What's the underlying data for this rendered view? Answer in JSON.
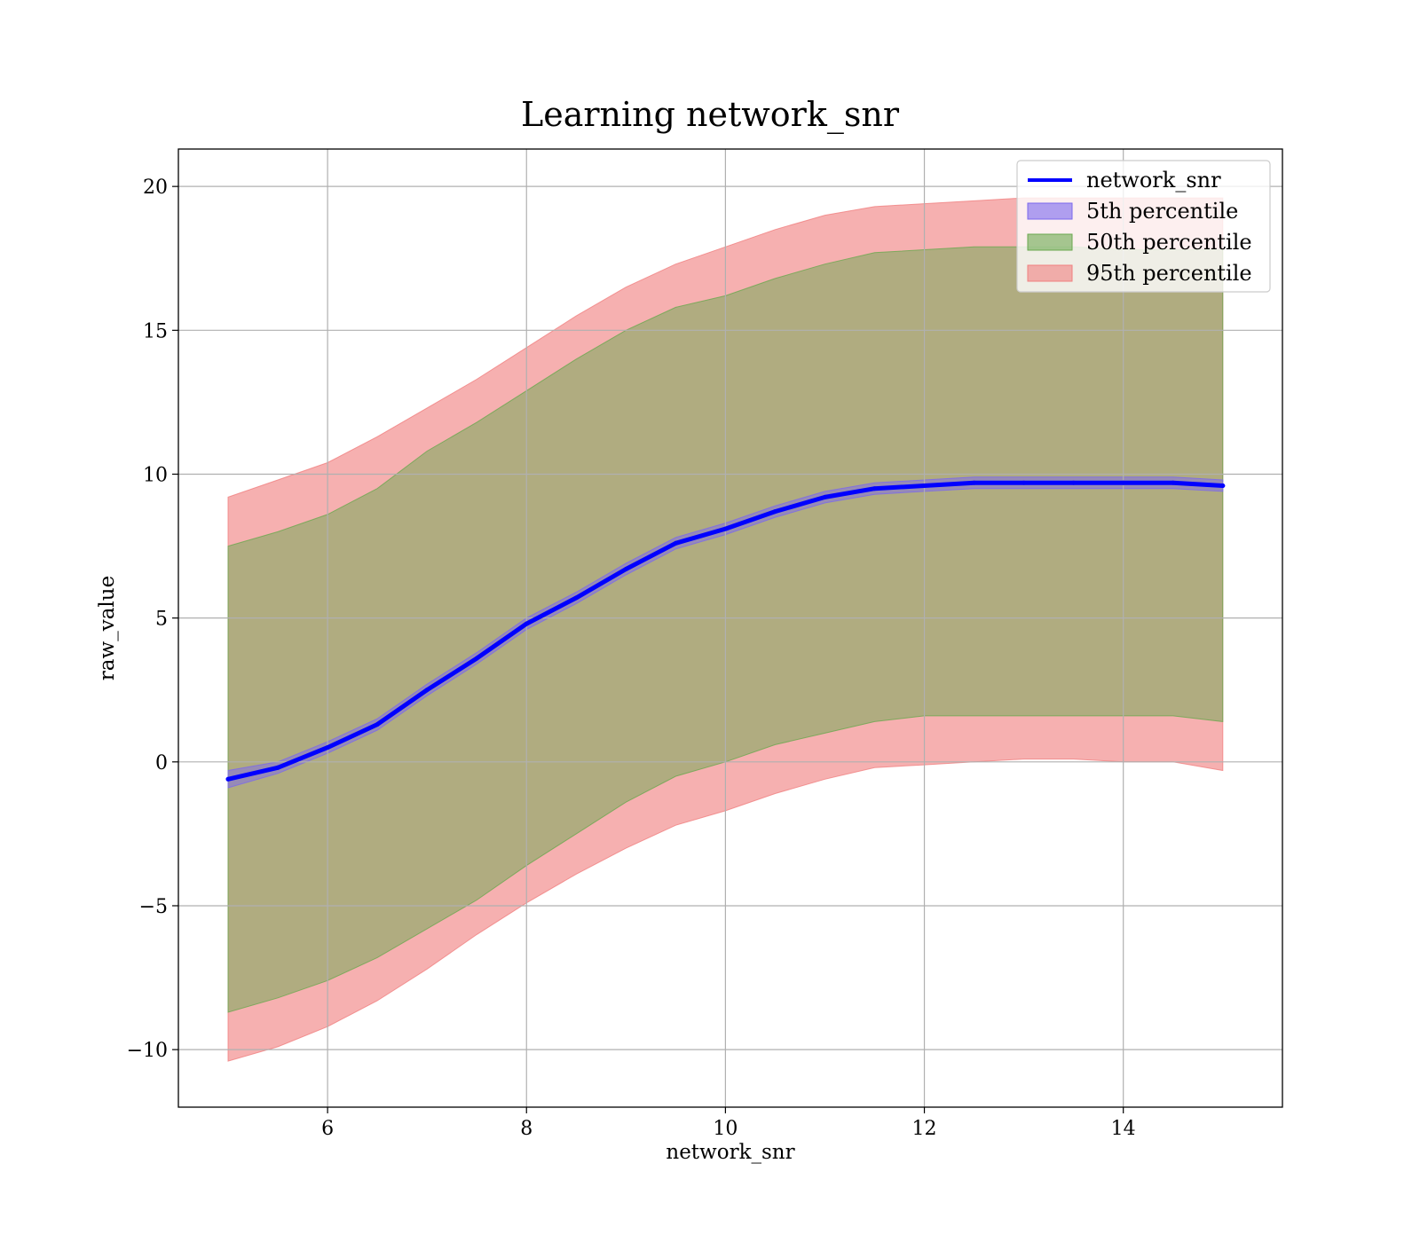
{
  "chart_data": {
    "type": "line",
    "title": "Learning network_snr",
    "xlabel": "network_snr",
    "ylabel": "raw_value",
    "xlim": [
      4.5,
      15.6
    ],
    "ylim": [
      -12.0,
      21.3
    ],
    "xticks": [
      6,
      8,
      10,
      12,
      14
    ],
    "yticks": [
      -10,
      -5,
      0,
      5,
      10,
      15,
      20
    ],
    "ytick_labels": [
      "−10",
      "−5",
      "0",
      "5",
      "10",
      "15",
      "20"
    ],
    "grid": true,
    "legend": {
      "placement": "top-right",
      "entries": [
        {
          "label": "network_snr",
          "kind": "line",
          "color": "#0000ff"
        },
        {
          "label": "5th percentile",
          "kind": "patch",
          "color": "#7b68ee"
        },
        {
          "label": "50th percentile",
          "kind": "patch",
          "color": "#6aa84f"
        },
        {
          "label": "95th percentile",
          "kind": "patch",
          "color": "#f08080"
        }
      ]
    },
    "series": [
      {
        "name": "network_snr",
        "kind": "line",
        "color": "#0000ff",
        "x": [
          5.0,
          5.5,
          6.0,
          6.5,
          7.0,
          7.5,
          8.0,
          8.5,
          9.0,
          9.5,
          10.0,
          10.5,
          11.0,
          11.5,
          12.0,
          12.5,
          13.0,
          13.5,
          14.0,
          14.5,
          15.0
        ],
        "y": [
          -0.6,
          -0.2,
          0.5,
          1.3,
          2.5,
          3.6,
          4.8,
          5.7,
          6.7,
          7.6,
          8.1,
          8.7,
          9.2,
          9.5,
          9.6,
          9.7,
          9.7,
          9.7,
          9.7,
          9.7,
          9.6
        ]
      },
      {
        "name": "5th percentile",
        "kind": "band",
        "color": "#7b68ee",
        "x": [
          5.0,
          5.5,
          6.0,
          6.5,
          7.0,
          7.5,
          8.0,
          8.5,
          9.0,
          9.5,
          10.0,
          10.5,
          11.0,
          11.5,
          12.0,
          12.5,
          13.0,
          13.5,
          14.0,
          14.5,
          15.0
        ],
        "lower": [
          -0.9,
          -0.4,
          0.3,
          1.1,
          2.3,
          3.4,
          4.6,
          5.5,
          6.5,
          7.4,
          7.9,
          8.5,
          9.0,
          9.3,
          9.4,
          9.5,
          9.5,
          9.5,
          9.5,
          9.5,
          9.4
        ],
        "upper": [
          -0.3,
          0.0,
          0.7,
          1.5,
          2.7,
          3.8,
          5.0,
          5.9,
          6.9,
          7.8,
          8.3,
          8.9,
          9.4,
          9.7,
          9.8,
          9.9,
          9.9,
          9.9,
          9.9,
          9.9,
          9.8
        ]
      },
      {
        "name": "50th percentile",
        "kind": "band",
        "color": "#6aa84f",
        "x": [
          5.0,
          5.5,
          6.0,
          6.5,
          7.0,
          7.5,
          8.0,
          8.5,
          9.0,
          9.5,
          10.0,
          10.5,
          11.0,
          11.5,
          12.0,
          12.5,
          13.0,
          13.5,
          14.0,
          14.5,
          15.0
        ],
        "lower": [
          -8.7,
          -8.2,
          -7.6,
          -6.8,
          -5.8,
          -4.8,
          -3.6,
          -2.5,
          -1.4,
          -0.5,
          0.0,
          0.6,
          1.0,
          1.4,
          1.6,
          1.6,
          1.6,
          1.6,
          1.6,
          1.6,
          1.4
        ],
        "upper": [
          7.5,
          8.0,
          8.6,
          9.5,
          10.8,
          11.8,
          12.9,
          14.0,
          15.0,
          15.8,
          16.2,
          16.8,
          17.3,
          17.7,
          17.8,
          17.9,
          17.9,
          17.9,
          17.8,
          17.8,
          17.8
        ]
      },
      {
        "name": "95th percentile",
        "kind": "band",
        "color": "#f08080",
        "x": [
          5.0,
          5.5,
          6.0,
          6.5,
          7.0,
          7.5,
          8.0,
          8.5,
          9.0,
          9.5,
          10.0,
          10.5,
          11.0,
          11.5,
          12.0,
          12.5,
          13.0,
          13.5,
          14.0,
          14.5,
          15.0
        ],
        "lower": [
          -10.4,
          -9.9,
          -9.2,
          -8.3,
          -7.2,
          -6.0,
          -4.9,
          -3.9,
          -3.0,
          -2.2,
          -1.7,
          -1.1,
          -0.6,
          -0.2,
          -0.1,
          0.0,
          0.1,
          0.1,
          0.0,
          0.0,
          -0.3
        ],
        "upper": [
          9.2,
          9.8,
          10.4,
          11.3,
          12.3,
          13.3,
          14.4,
          15.5,
          16.5,
          17.3,
          17.9,
          18.5,
          19.0,
          19.3,
          19.4,
          19.5,
          19.6,
          19.6,
          19.6,
          19.6,
          19.6
        ]
      }
    ]
  }
}
